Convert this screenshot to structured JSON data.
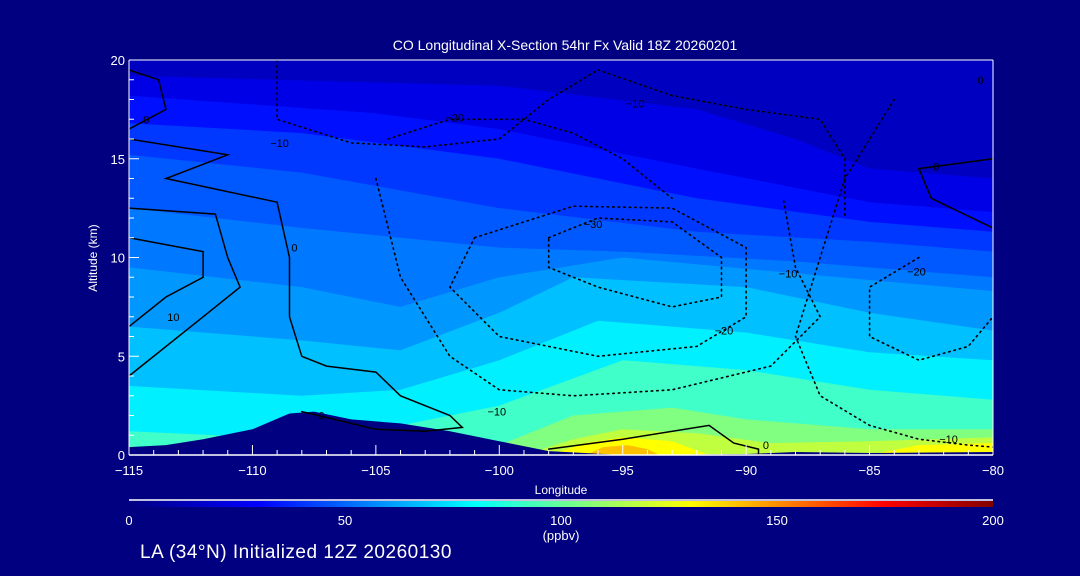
{
  "chart_data": {
    "type": "heatmap",
    "title": "CO Longitudinal X-Section 54hr  Fx Valid 18Z 20260201",
    "xlabel": "Longitude",
    "ylabel": "Altitude (km)",
    "xlim": [
      -115,
      -80
    ],
    "ylim": [
      0,
      20
    ],
    "xticks": [
      -115,
      -110,
      -105,
      -100,
      -95,
      -90,
      -85,
      -80
    ],
    "xtick_labels": [
      "−115",
      "−110",
      "−105",
      "−100",
      "−95",
      "−90",
      "−85",
      "−80"
    ],
    "yticks": [
      0,
      5,
      10,
      15,
      20
    ],
    "ytick_labels": [
      "0",
      "5",
      "10",
      "15",
      "20"
    ],
    "colorbar": {
      "label": "(ppbv)",
      "range": [
        0,
        200
      ],
      "ticks": [
        0,
        50,
        100,
        150,
        200
      ],
      "tick_labels": [
        "0",
        "50",
        "100",
        "150",
        "200"
      ],
      "stops": [
        {
          "v": 0,
          "color": "#000080"
        },
        {
          "v": 30,
          "color": "#0000ff"
        },
        {
          "v": 80,
          "color": "#00ffff"
        },
        {
          "v": 130,
          "color": "#ffff00"
        },
        {
          "v": 175,
          "color": "#ff0000"
        },
        {
          "v": 200,
          "color": "#800000"
        }
      ]
    },
    "background_color": "#0000c0",
    "bands": [
      {
        "color": "#0000e6",
        "top": [
          [
            -115,
            19.2
          ],
          [
            -100,
            18.7
          ],
          [
            -92,
            17.5
          ],
          [
            -88,
            16
          ],
          [
            -85,
            14.5
          ],
          [
            -80,
            14
          ]
        ]
      },
      {
        "color": "#0010ff",
        "top": [
          [
            -115,
            18.2
          ],
          [
            -105,
            17.3
          ],
          [
            -100,
            16.5
          ],
          [
            -92,
            14.5
          ],
          [
            -85,
            12.8
          ],
          [
            -80,
            12.3
          ]
        ]
      },
      {
        "color": "#0038ff",
        "top": [
          [
            -115,
            16.8
          ],
          [
            -108,
            16.3
          ],
          [
            -100,
            15
          ],
          [
            -92,
            13
          ],
          [
            -85,
            11.8
          ],
          [
            -80,
            11.3
          ]
        ]
      },
      {
        "color": "#0058ff",
        "top": [
          [
            -115,
            15.2
          ],
          [
            -108,
            14.3
          ],
          [
            -100,
            12.5
          ],
          [
            -92,
            11.3
          ],
          [
            -85,
            10.8
          ],
          [
            -80,
            10.3
          ]
        ]
      },
      {
        "color": "#0078ff",
        "top": [
          [
            -115,
            12.5
          ],
          [
            -108,
            11.5
          ],
          [
            -100,
            10.5
          ],
          [
            -95,
            10.3
          ],
          [
            -88,
            9.8
          ],
          [
            -80,
            9
          ]
        ]
      },
      {
        "color": "#0098ff",
        "top": [
          [
            -115,
            9.5
          ],
          [
            -108,
            8.5
          ],
          [
            -104,
            7.5
          ],
          [
            -100,
            9
          ],
          [
            -95,
            10
          ],
          [
            -88,
            9.2
          ],
          [
            -80,
            8.3
          ]
        ]
      },
      {
        "color": "#00c0ff",
        "top": [
          [
            -115,
            6.5
          ],
          [
            -108,
            5.8
          ],
          [
            -104,
            5.3
          ],
          [
            -100,
            7.2
          ],
          [
            -97,
            9
          ],
          [
            -90,
            8.5
          ],
          [
            -85,
            7.2
          ],
          [
            -80,
            6.3
          ]
        ]
      },
      {
        "color": "#00f0ff",
        "top": [
          [
            -115,
            3.5
          ],
          [
            -108,
            3
          ],
          [
            -104,
            3.3
          ],
          [
            -100,
            4.8
          ],
          [
            -96,
            6.8
          ],
          [
            -90,
            6.2
          ],
          [
            -85,
            5.2
          ],
          [
            -80,
            4.8
          ]
        ]
      },
      {
        "color": "#40ffc8",
        "top": [
          [
            -115,
            1.2
          ],
          [
            -108,
            0.8
          ],
          [
            -104,
            1.5
          ],
          [
            -100,
            2.5
          ],
          [
            -95,
            4.8
          ],
          [
            -90,
            4.3
          ],
          [
            -85,
            3.3
          ],
          [
            -80,
            2.8
          ]
        ]
      },
      {
        "color": "#80ff80",
        "top": [
          [
            -115,
            0
          ],
          [
            -104,
            0
          ],
          [
            -100,
            0.5
          ],
          [
            -97,
            2
          ],
          [
            -93,
            2.4
          ],
          [
            -90,
            1.8
          ],
          [
            -85,
            1.3
          ],
          [
            -80,
            1.3
          ]
        ]
      },
      {
        "color": "#c0ff40",
        "top": [
          [
            -115,
            0
          ],
          [
            -99,
            0
          ],
          [
            -97,
            0.8
          ],
          [
            -95,
            1.3
          ],
          [
            -92,
            1.1
          ],
          [
            -89,
            0.6
          ],
          [
            -85,
            0.7
          ],
          [
            -80,
            0.9
          ]
        ]
      },
      {
        "color": "#ffff00",
        "top": [
          [
            -115,
            0
          ],
          [
            -98,
            0
          ],
          [
            -96.5,
            0.6
          ],
          [
            -95,
            0.9
          ],
          [
            -93,
            0.7
          ],
          [
            -91.5,
            0
          ],
          [
            -85,
            0
          ],
          [
            -83,
            0.5
          ],
          [
            -80,
            0.6
          ]
        ]
      },
      {
        "color": "#ffc000",
        "top": [
          [
            -115,
            0
          ],
          [
            -96.5,
            0
          ],
          [
            -95.8,
            0.4
          ],
          [
            -94.8,
            0.5
          ],
          [
            -94,
            0.3
          ],
          [
            -93.5,
            0
          ],
          [
            -80,
            0
          ]
        ]
      }
    ],
    "terrain": {
      "color": "#000080",
      "top": [
        [
          -115,
          0.4
        ],
        [
          -113.5,
          0.5
        ],
        [
          -112,
          0.8
        ],
        [
          -110,
          1.3
        ],
        [
          -108.5,
          2.1
        ],
        [
          -107.5,
          2.2
        ],
        [
          -106,
          1.8
        ],
        [
          -104,
          1.6
        ],
        [
          -102,
          1.2
        ],
        [
          -100,
          0.7
        ],
        [
          -98,
          0.2
        ],
        [
          -95,
          0
        ],
        [
          -90,
          0.05
        ],
        [
          -88,
          0.15
        ],
        [
          -85,
          0.1
        ],
        [
          -80,
          0.15
        ]
      ]
    },
    "contours": [
      {
        "value": 0,
        "style": "solid",
        "points": [
          [
            -115,
            19.5
          ],
          [
            -113.8,
            19
          ],
          [
            -113.5,
            17.5
          ],
          [
            -115,
            16.5
          ]
        ]
      },
      {
        "value": 0,
        "style": "solid",
        "points": [
          [
            -115,
            16
          ],
          [
            -111,
            15.2
          ],
          [
            -113.5,
            14
          ],
          [
            -109,
            12.8
          ],
          [
            -108.5,
            10
          ],
          [
            -108.5,
            7
          ],
          [
            -108,
            5
          ],
          [
            -107,
            4.5
          ],
          [
            -105,
            4.2
          ],
          [
            -104,
            3
          ],
          [
            -102,
            2
          ],
          [
            -101.5,
            1.4
          ],
          [
            -103,
            1.2
          ],
          [
            -105,
            1.3
          ],
          [
            -108,
            2.2
          ]
        ]
      },
      {
        "value": 10,
        "style": "solid",
        "points": [
          [
            -115,
            12.5
          ],
          [
            -111.5,
            12.2
          ],
          [
            -111,
            10
          ],
          [
            -110.5,
            8.5
          ],
          [
            -112,
            7
          ],
          [
            -115,
            4
          ]
        ]
      },
      {
        "value": 10,
        "style": "solid",
        "points": [
          [
            -115,
            11
          ],
          [
            -112,
            10.3
          ],
          [
            -112,
            9
          ],
          [
            -113.5,
            8
          ],
          [
            -115,
            6.5
          ]
        ]
      },
      {
        "value": 0,
        "style": "solid",
        "points": [
          [
            -98,
            0.3
          ],
          [
            -95,
            0.8
          ],
          [
            -91.5,
            1.5
          ],
          [
            -90.5,
            0.6
          ],
          [
            -89.5,
            0.3
          ],
          [
            -89.5,
            0
          ]
        ]
      },
      {
        "value": 0,
        "style": "solid",
        "points": [
          [
            -80,
            15
          ],
          [
            -83,
            14.5
          ],
          [
            -82.5,
            13
          ],
          [
            -80,
            11.5
          ]
        ]
      },
      {
        "value": -10,
        "style": "dotted",
        "points": [
          [
            -109,
            20
          ],
          [
            -109,
            17
          ],
          [
            -106,
            15.8
          ],
          [
            -103,
            15.6
          ],
          [
            -100,
            16
          ],
          [
            -98,
            18
          ],
          [
            -96,
            19.5
          ]
        ]
      },
      {
        "value": -10,
        "style": "dotted",
        "points": [
          [
            -96,
            19.5
          ],
          [
            -93,
            18.2
          ],
          [
            -90,
            17.5
          ],
          [
            -87,
            17
          ],
          [
            -86,
            15
          ],
          [
            -86,
            12
          ]
        ]
      },
      {
        "value": -20,
        "style": "dotted",
        "points": [
          [
            -104.5,
            16
          ],
          [
            -102,
            17
          ],
          [
            -99,
            17
          ],
          [
            -97,
            16.3
          ],
          [
            -95,
            15
          ],
          [
            -93,
            13
          ]
        ]
      },
      {
        "value": -30,
        "style": "dotted",
        "points": [
          [
            -98,
            11
          ],
          [
            -96,
            12
          ],
          [
            -93,
            11.8
          ],
          [
            -91,
            10
          ],
          [
            -91,
            8
          ],
          [
            -93,
            7.5
          ],
          [
            -96,
            8.5
          ],
          [
            -98,
            9.5
          ],
          [
            -98,
            11
          ]
        ]
      },
      {
        "value": -20,
        "style": "dotted",
        "points": [
          [
            -101,
            11
          ],
          [
            -97,
            12.6
          ],
          [
            -93,
            12.5
          ],
          [
            -90,
            10.5
          ],
          [
            -90,
            7
          ],
          [
            -92,
            5.5
          ],
          [
            -96,
            5
          ],
          [
            -100,
            6
          ],
          [
            -102,
            8.5
          ],
          [
            -101,
            11
          ]
        ]
      },
      {
        "value": -10,
        "style": "dotted",
        "points": [
          [
            -105,
            14
          ],
          [
            -104,
            9
          ],
          [
            -102,
            5
          ],
          [
            -100,
            3.3
          ],
          [
            -97,
            3
          ],
          [
            -93,
            3.3
          ],
          [
            -89,
            4.5
          ],
          [
            -87,
            7
          ],
          [
            -88,
            9.5
          ],
          [
            -88.5,
            13
          ]
        ]
      },
      {
        "value": -20,
        "style": "dotted",
        "points": [
          [
            -83,
            10
          ],
          [
            -85,
            8.5
          ],
          [
            -85,
            6
          ],
          [
            -83,
            4.8
          ],
          [
            -81,
            5.5
          ],
          [
            -80,
            7
          ]
        ]
      },
      {
        "value": -10,
        "style": "dotted",
        "points": [
          [
            -84,
            18
          ],
          [
            -86,
            14
          ],
          [
            -87,
            10
          ],
          [
            -88,
            6
          ],
          [
            -87,
            3
          ],
          [
            -85,
            1.5
          ],
          [
            -83,
            0.8
          ],
          [
            -81,
            0.5
          ],
          [
            -80,
            0.4
          ]
        ]
      }
    ],
    "contour_labels": [
      {
        "text": "0",
        "lon": -114.3,
        "alt": 17.0
      },
      {
        "text": "-10",
        "lon": -108.9,
        "alt": 15.8
      },
      {
        "text": "-20",
        "lon": -101.8,
        "alt": 17.1
      },
      {
        "text": "-10",
        "lon": -94.5,
        "alt": 17.8
      },
      {
        "text": "0",
        "lon": -80.5,
        "alt": 19.0
      },
      {
        "text": "0",
        "lon": -82.3,
        "alt": 14.6
      },
      {
        "text": "-30",
        "lon": -96.2,
        "alt": 11.7
      },
      {
        "text": "0",
        "lon": -108.3,
        "alt": 10.5
      },
      {
        "text": "10",
        "lon": -113.2,
        "alt": 7.0
      },
      {
        "text": "-10",
        "lon": -88.3,
        "alt": 9.2
      },
      {
        "text": "-20",
        "lon": -83.1,
        "alt": 9.3
      },
      {
        "text": "-20",
        "lon": -90.9,
        "alt": 6.3
      },
      {
        "text": "0",
        "lon": -107.2,
        "alt": 2.0
      },
      {
        "text": "-10",
        "lon": -100.1,
        "alt": 2.2
      },
      {
        "text": "0",
        "lon": -89.2,
        "alt": 0.5
      },
      {
        "text": "-10",
        "lon": -81.8,
        "alt": 0.8
      }
    ]
  },
  "footer": "LA (34°N) Initialized 12Z 20260130"
}
